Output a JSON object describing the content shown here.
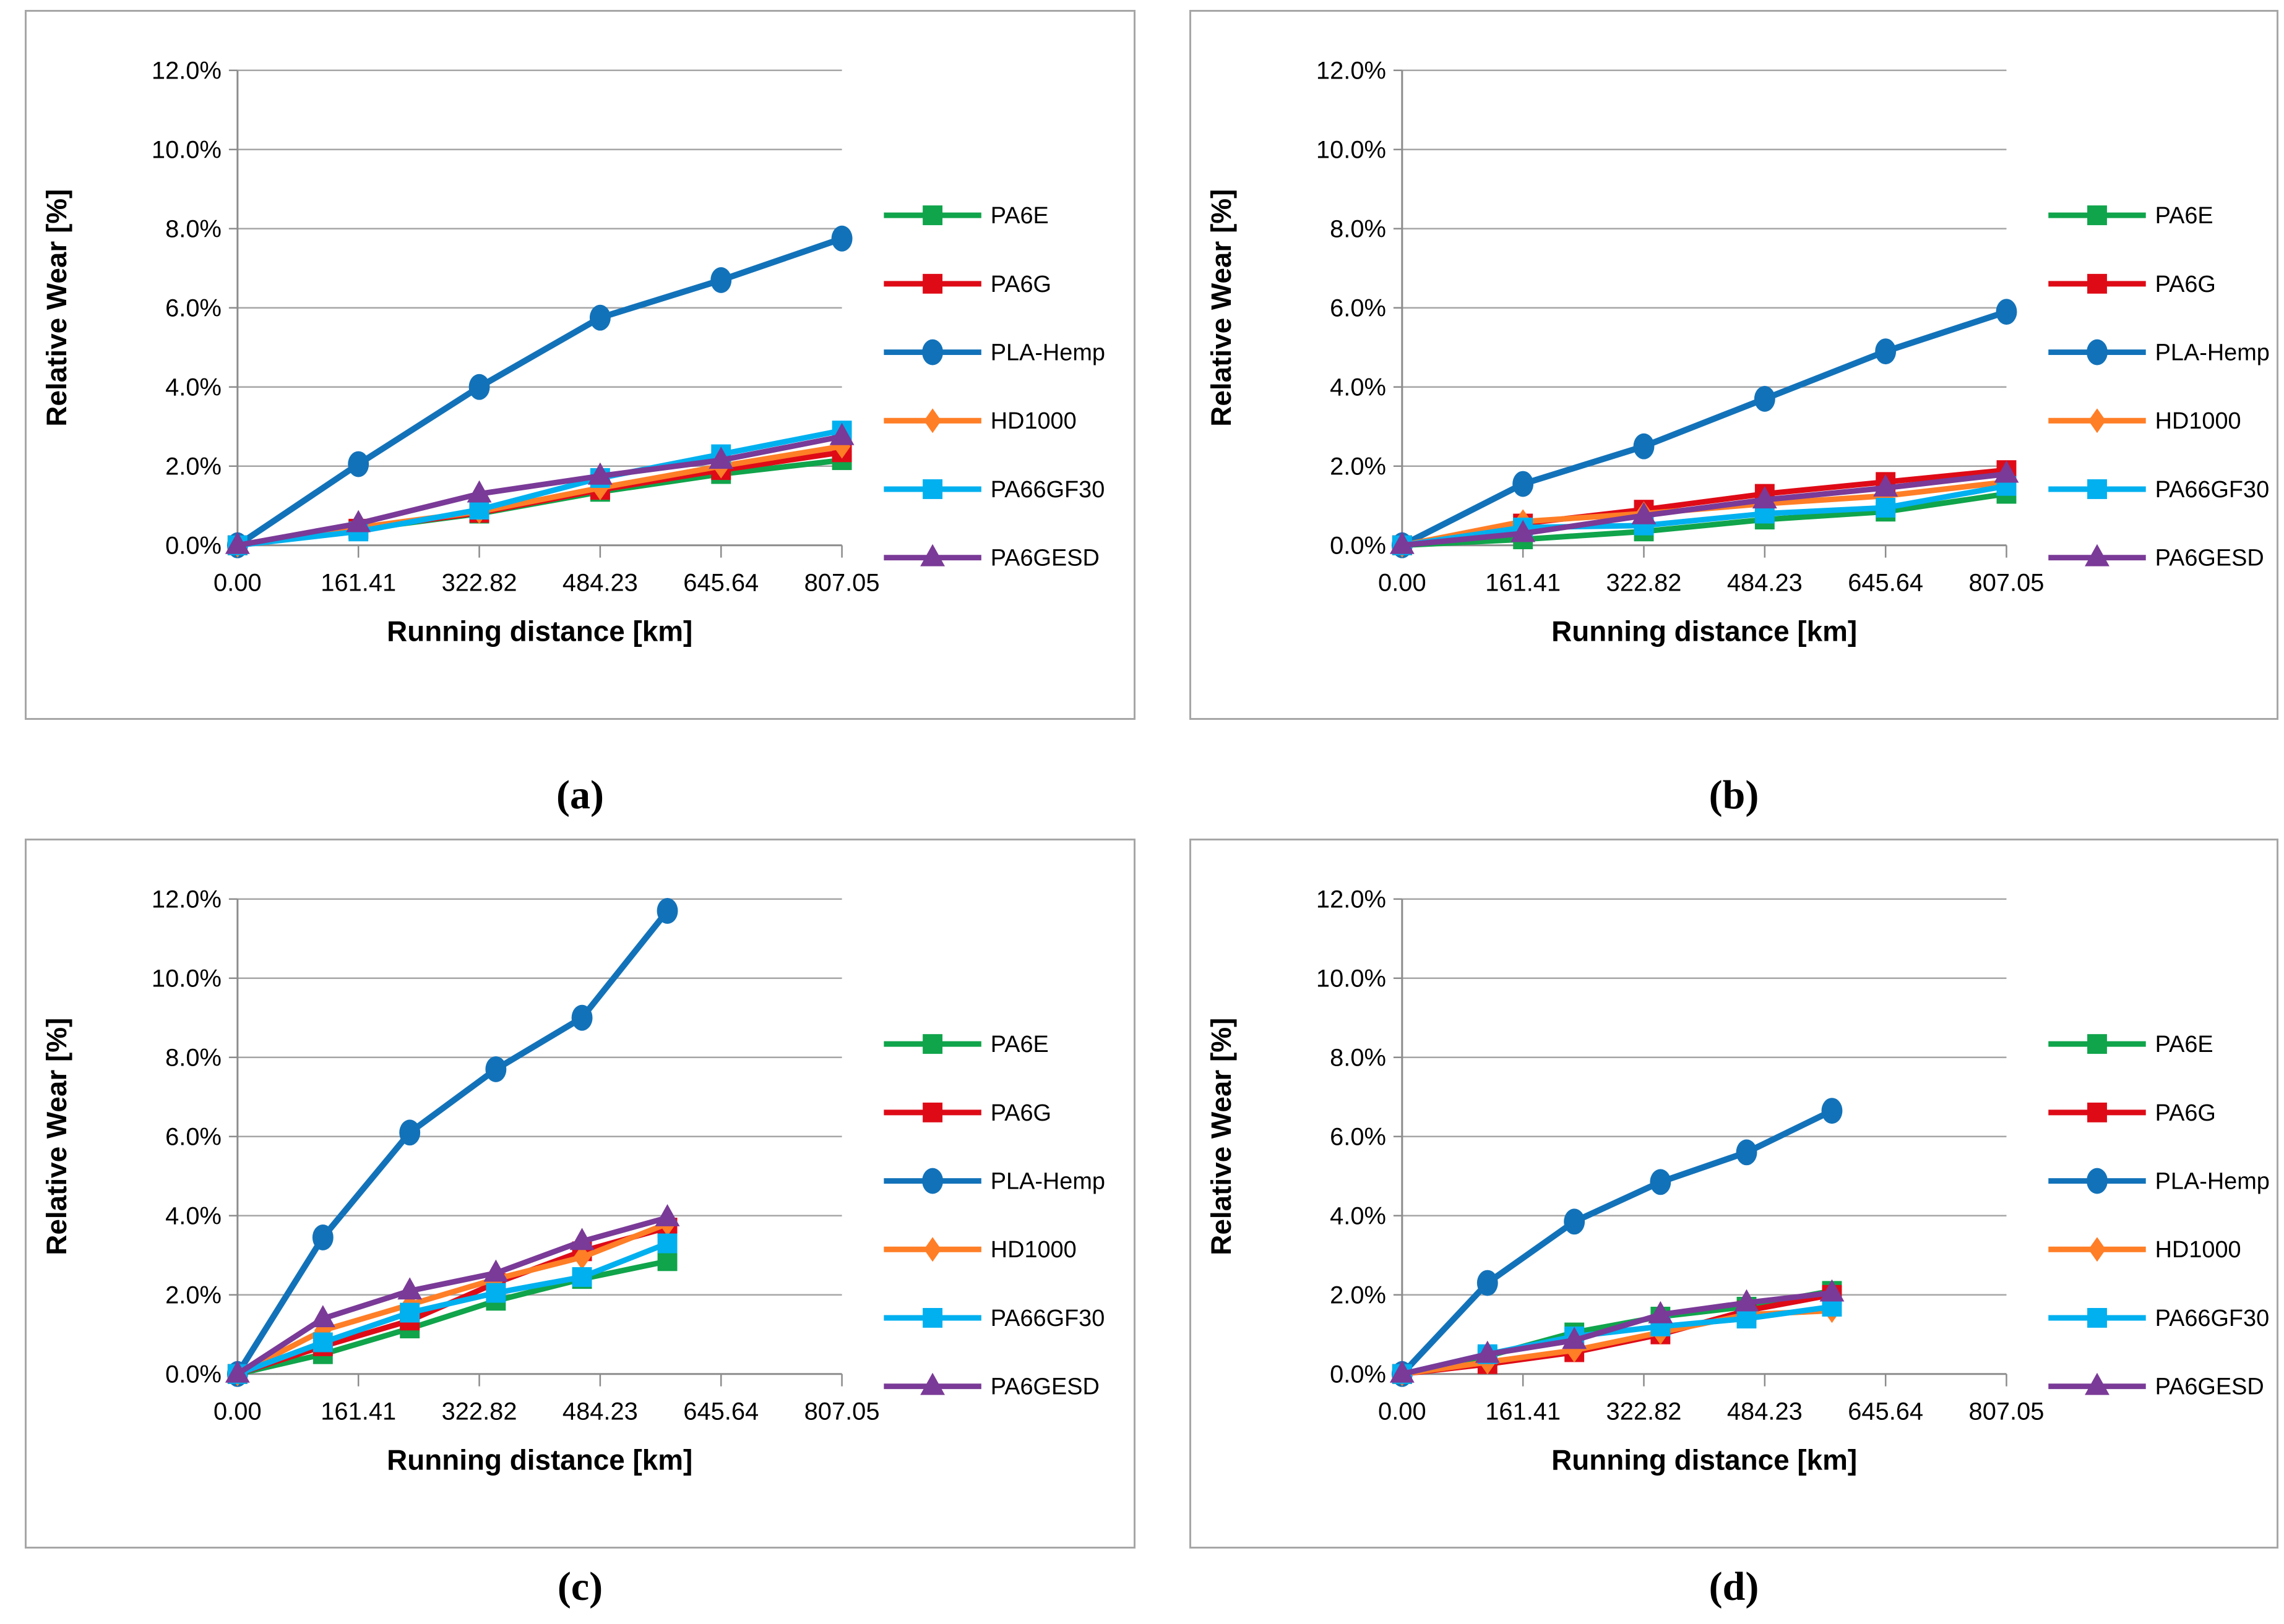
{
  "figure": {
    "xlabel": "Running distance [km]",
    "ylabel": "Relative Wear [%]",
    "x_tick_labels": [
      "0.00",
      "161.41",
      "322.82",
      "484.23",
      "645.64",
      "807.05"
    ],
    "y_tick_labels": [
      "0.0%",
      "2.0%",
      "4.0%",
      "6.0%",
      "8.0%",
      "10.0%",
      "12.0%"
    ],
    "legend_entries": [
      "PA6E",
      "PA6G",
      "PLA-Hemp",
      "HD1000",
      "PA66GF30",
      "PA6GESD"
    ]
  },
  "captions": [
    "(a)",
    "(b)",
    "(c)",
    "(d)"
  ],
  "colors": {
    "PA6E": "#10A44B",
    "PA6G": "#DE0B17",
    "PLA-Hemp": "#1272B9",
    "HD1000": "#FF7E26",
    "PA66GF30": "#00B0EF",
    "PA6GESD": "#7A3A97",
    "gridline": "#A6A6A6",
    "axis": "#8C8C8C",
    "text": "#000000",
    "panel_border": "#A6A6A6"
  },
  "series_styles": [
    {
      "name": "PA6E",
      "color": "#10A44B",
      "marker": "square"
    },
    {
      "name": "PA6G",
      "color": "#DE0B17",
      "marker": "square"
    },
    {
      "name": "PLA-Hemp",
      "color": "#1272B9",
      "marker": "circle"
    },
    {
      "name": "HD1000",
      "color": "#FF7E26",
      "marker": "diamond"
    },
    {
      "name": "PA66GF30",
      "color": "#00B0EF",
      "marker": "square"
    },
    {
      "name": "PA6GESD",
      "color": "#7A3A97",
      "marker": "triangle"
    }
  ],
  "chart_data": [
    {
      "panel": "a",
      "type": "line",
      "title": "",
      "xlabel": "Running distance [km]",
      "ylabel": "Relative Wear [%]",
      "xlim": [
        0,
        807.05
      ],
      "ylim_percent": [
        0,
        12
      ],
      "grid": true,
      "legend_position": "right",
      "x_tick_values": [
        0,
        161.41,
        322.82,
        484.23,
        645.64,
        807.05
      ],
      "x_tick_labels": [
        "0.00",
        "161.41",
        "322.82",
        "484.23",
        "645.64",
        "807.05"
      ],
      "y_tick_labels": [
        "0.0%",
        "2.0%",
        "4.0%",
        "6.0%",
        "8.0%",
        "10.0%",
        "12.0%"
      ],
      "x": [
        0,
        161.41,
        322.82,
        484.23,
        645.64,
        807.05
      ],
      "series": [
        {
          "name": "PA6E",
          "values": [
            0,
            0.4,
            0.8,
            1.35,
            1.8,
            2.15
          ]
        },
        {
          "name": "PA6G",
          "values": [
            0,
            0.42,
            0.82,
            1.4,
            1.9,
            2.35
          ]
        },
        {
          "name": "PLA-Hemp",
          "values": [
            0,
            2.05,
            4.0,
            5.75,
            6.7,
            7.75
          ]
        },
        {
          "name": "HD1000",
          "values": [
            0,
            0.45,
            0.85,
            1.45,
            2.0,
            2.5
          ]
        },
        {
          "name": "PA66GF30",
          "values": [
            0,
            0.35,
            0.9,
            1.7,
            2.3,
            2.9
          ]
        },
        {
          "name": "PA6GESD",
          "values": [
            0,
            0.55,
            1.3,
            1.75,
            2.15,
            2.75
          ]
        }
      ]
    },
    {
      "panel": "b",
      "type": "line",
      "title": "",
      "xlabel": "Running distance [km]",
      "ylabel": "Relative Wear [%]",
      "xlim": [
        0,
        807.05
      ],
      "ylim_percent": [
        0,
        12
      ],
      "grid": true,
      "legend_position": "right",
      "x_tick_values": [
        0,
        161.41,
        322.82,
        484.23,
        645.64,
        807.05
      ],
      "x_tick_labels": [
        "0.00",
        "161.41",
        "322.82",
        "484.23",
        "645.64",
        "807.05"
      ],
      "y_tick_labels": [
        "0.0%",
        "2.0%",
        "4.0%",
        "6.0%",
        "8.0%",
        "10.0%",
        "12.0%"
      ],
      "x": [
        0,
        161.41,
        322.82,
        484.23,
        645.64,
        807.05
      ],
      "series": [
        {
          "name": "PA6E",
          "values": [
            0,
            0.15,
            0.35,
            0.65,
            0.85,
            1.3
          ]
        },
        {
          "name": "PA6G",
          "values": [
            0,
            0.55,
            0.9,
            1.3,
            1.6,
            1.9
          ]
        },
        {
          "name": "PLA-Hemp",
          "values": [
            0,
            1.55,
            2.5,
            3.7,
            4.9,
            5.9
          ]
        },
        {
          "name": "HD1000",
          "values": [
            0,
            0.6,
            0.8,
            1.05,
            1.25,
            1.6
          ]
        },
        {
          "name": "PA66GF30",
          "values": [
            0,
            0.45,
            0.5,
            0.8,
            0.95,
            1.5
          ]
        },
        {
          "name": "PA6GESD",
          "values": [
            0,
            0.3,
            0.75,
            1.15,
            1.45,
            1.8
          ]
        }
      ]
    },
    {
      "panel": "c",
      "type": "line",
      "title": "",
      "xlabel": "Running distance [km]",
      "ylabel": "Relative Wear [%]",
      "xlim": [
        0,
        807.05
      ],
      "ylim_percent": [
        0,
        12
      ],
      "grid": true,
      "legend_position": "right",
      "x_tick_values": [
        0,
        161.41,
        322.82,
        484.23,
        645.64,
        807.05
      ],
      "x_tick_labels": [
        "0.00",
        "161.41",
        "322.82",
        "484.23",
        "645.64",
        "807.05"
      ],
      "y_tick_labels": [
        "0.0%",
        "2.0%",
        "4.0%",
        "6.0%",
        "8.0%",
        "10.0%",
        "12.0%"
      ],
      "x": [
        0,
        114,
        230,
        345,
        460,
        574
      ],
      "series": [
        {
          "name": "PA6E",
          "values": [
            0,
            0.5,
            1.15,
            1.85,
            2.4,
            2.85
          ]
        },
        {
          "name": "PA6G",
          "values": [
            0,
            0.7,
            1.35,
            2.3,
            3.1,
            3.7
          ]
        },
        {
          "name": "PLA-Hemp",
          "values": [
            0,
            3.45,
            6.1,
            7.7,
            9.0,
            11.7
          ]
        },
        {
          "name": "HD1000",
          "values": [
            0,
            1.1,
            1.75,
            2.4,
            2.95,
            3.8
          ]
        },
        {
          "name": "PA66GF30",
          "values": [
            0,
            0.8,
            1.55,
            2.05,
            2.45,
            3.3
          ]
        },
        {
          "name": "PA6GESD",
          "values": [
            0,
            1.4,
            2.1,
            2.55,
            3.35,
            3.95
          ]
        }
      ]
    },
    {
      "panel": "d",
      "type": "line",
      "title": "",
      "xlabel": "Running distance [km]",
      "ylabel": "Relative Wear [%]",
      "xlim": [
        0,
        807.05
      ],
      "ylim_percent": [
        0,
        12
      ],
      "grid": true,
      "legend_position": "right",
      "x_tick_values": [
        0,
        161.41,
        322.82,
        484.23,
        645.64,
        807.05
      ],
      "x_tick_labels": [
        "0.00",
        "161.41",
        "322.82",
        "484.23",
        "645.64",
        "807.05"
      ],
      "y_tick_labels": [
        "0.0%",
        "2.0%",
        "4.0%",
        "6.0%",
        "8.0%",
        "10.0%",
        "12.0%"
      ],
      "x": [
        0,
        114,
        230,
        345,
        460,
        574
      ],
      "series": [
        {
          "name": "PA6E",
          "values": [
            0,
            0.45,
            1.05,
            1.45,
            1.7,
            2.1
          ]
        },
        {
          "name": "PA6G",
          "values": [
            0,
            0.25,
            0.55,
            1.0,
            1.6,
            2.0
          ]
        },
        {
          "name": "PLA-Hemp",
          "values": [
            0,
            2.3,
            3.85,
            4.85,
            5.6,
            6.65
          ]
        },
        {
          "name": "HD1000",
          "values": [
            0,
            0.3,
            0.6,
            1.05,
            1.5,
            1.6
          ]
        },
        {
          "name": "PA66GF30",
          "values": [
            0,
            0.5,
            0.95,
            1.2,
            1.4,
            1.7
          ]
        },
        {
          "name": "PA6GESD",
          "values": [
            0,
            0.5,
            0.85,
            1.5,
            1.8,
            2.05
          ]
        }
      ]
    }
  ]
}
